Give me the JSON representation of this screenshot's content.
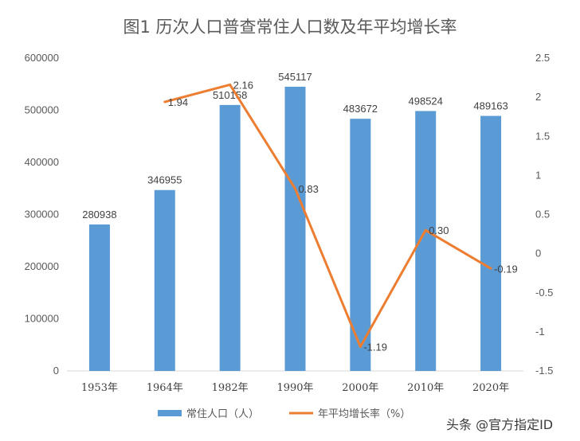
{
  "chart_data": {
    "type": "bar+line",
    "title": "图1 历次人口普查常住人口数及年平均增长率",
    "categories": [
      "1953年",
      "1964年",
      "1982年",
      "1990年",
      "2000年",
      "2010年",
      "2020年"
    ],
    "series": [
      {
        "name": "常住人口（人）",
        "type": "bar",
        "axis": "left",
        "values": [
          280938,
          346955,
          510158,
          545117,
          483672,
          498524,
          489163
        ],
        "labels": [
          "280938",
          "346955",
          "510158",
          "545117",
          "483672",
          "498524",
          "489163"
        ],
        "color": "#5b9bd5"
      },
      {
        "name": "年平均增长率（%）",
        "type": "line",
        "axis": "right",
        "values": [
          null,
          1.94,
          2.16,
          0.83,
          -1.19,
          0.3,
          -0.19
        ],
        "labels": [
          "",
          "1.94",
          "2.16",
          "0.83",
          "-1.19",
          "0.30",
          "-0.19"
        ],
        "color": "#ed7d31"
      }
    ],
    "yleft": {
      "min": 0,
      "max": 600000,
      "ticks": [
        "0",
        "100000",
        "200000",
        "300000",
        "400000",
        "500000",
        "600000"
      ]
    },
    "yright": {
      "min": -1.5,
      "max": 2.5,
      "ticks": [
        "-1.5",
        "-1",
        "-0.5",
        "0",
        "0.5",
        "1",
        "1.5",
        "2",
        "2.5"
      ]
    },
    "grid": false,
    "legend_position": "bottom"
  },
  "watermark": "头条 @官方指定ID"
}
